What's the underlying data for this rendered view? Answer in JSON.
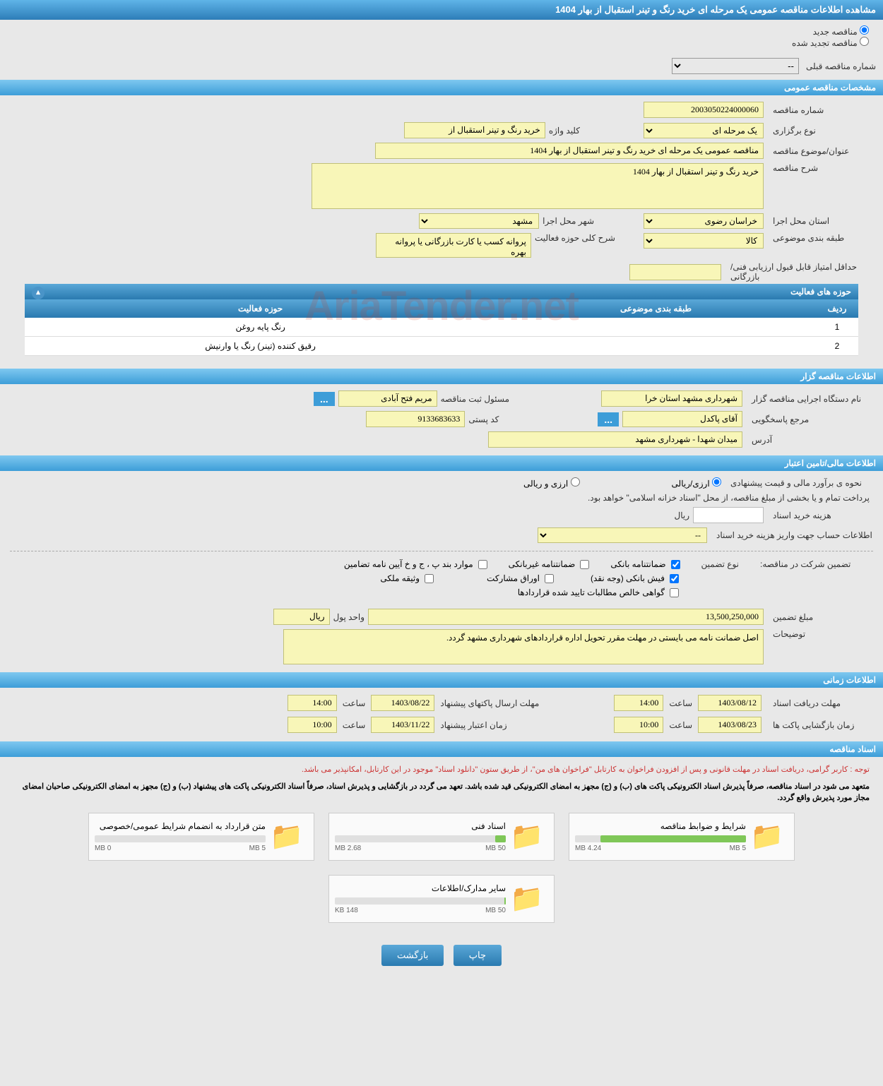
{
  "header": {
    "title": "مشاهده اطلاعات مناقصه عمومی یک مرحله ای خرید رنگ و تینر استقبال از بهار 1404"
  },
  "tender_type": {
    "new_tender": "مناقصه جدید",
    "renewed_tender": "مناقصه تجدید شده",
    "prev_label": "شماره مناقصه قبلی",
    "prev_value": "--"
  },
  "sections": {
    "general": "مشخصات مناقصه عمومی",
    "activity_areas": "حوزه های فعالیت",
    "organizer": "اطلاعات مناقصه گزار",
    "financial": "اطلاعات مالی/تامین اعتبار",
    "timing": "اطلاعات زمانی",
    "documents": "اسناد مناقصه"
  },
  "general": {
    "number_label": "شماره مناقصه",
    "number_value": "2003050224000060",
    "exec_type_label": "نوع برگزاری",
    "exec_type_value": "یک مرحله ای",
    "keyword_label": "کلید واژه",
    "keyword_value": "خرید رنگ و تینر استقبال از",
    "topic_label": "عنوان/موضوع مناقصه",
    "topic_value": "مناقصه عمومی یک مرحله ای خرید رنگ و تینر استقبال از بهار 1404",
    "desc_label": "شرح مناقصه",
    "desc_value": "خرید رنگ و تینر استقبال از بهار 1404",
    "province_label": "استان محل اجرا",
    "province_value": "خراسان رضوی",
    "city_label": "شهر محل اجرا",
    "city_value": "مشهد",
    "category_label": "طبقه بندی موضوعی",
    "category_value": "کالا",
    "scope_label": "شرح کلی حوزه فعالیت",
    "scope_value": "پروانه کسب یا کارت بازرگانی یا پروانه بهره",
    "min_score_label": "حداقل امتیاز قابل قبول ارزیابی فنی/بازرگانی"
  },
  "activity_table": {
    "col_row": "ردیف",
    "col_category": "طبقه بندی موضوعی",
    "col_area": "حوزه فعالیت",
    "rows": [
      {
        "idx": "1",
        "cat": "",
        "area": "رنگ پایه روغن"
      },
      {
        "idx": "2",
        "cat": "",
        "area": "رقیق کننده (تینر) رنگ یا وارنیش"
      }
    ]
  },
  "organizer": {
    "exec_dev_label": "نام دستگاه اجرایی مناقصه گزار",
    "exec_dev_value": "شهرداری مشهد استان خرا",
    "reg_officer_label": "مسئول ثبت مناقصه",
    "reg_officer_value": "مریم فتح آبادی",
    "contact_label": "مرجع پاسخگویی",
    "contact_value": "آقای پاکدل",
    "postal_label": "کد پستی",
    "postal_value": "9133683633",
    "address_label": "آدرس",
    "address_value": "میدان شهدا - شهرداری مشهد"
  },
  "financial": {
    "estimate_label": "نحوه ی برآورد مالی و قیمت پیشنهادی",
    "rial_only": "ارزی/ریالی",
    "currency_rial": "ارزی و ریالی",
    "payment_note": "پرداخت تمام و یا بخشی از مبلغ مناقصه، از محل \"اسناد خزانه اسلامی\" خواهد بود.",
    "doc_cost_label": "هزینه خرید اسناد",
    "rial_unit": "ریال",
    "deposit_account_label": "اطلاعات حساب جهت واریز هزینه خرید اسناد",
    "deposit_account_value": "--",
    "guarantee_label": "تضمین شرکت در مناقصه:",
    "guarantee_type": "نوع تضمین",
    "bank_guarantee": "ضمانتنامه بانکی",
    "nonbank_guarantee": "ضمانتنامه غیربانکی",
    "regulation_items": "موارد بند پ ، ج و خ آیین نامه تضامین",
    "bank_receipt": "فیش بانکی (وجه نقد)",
    "partnership_bonds": "اوراق مشارکت",
    "property_deposit": "وثیقه ملکی",
    "approved_receivables": "گواهی خالص مطالبات تایید شده قراردادها",
    "amount_label": "مبلغ تضمین",
    "amount_value": "13,500,250,000",
    "unit_label": "واحد پول",
    "unit_value": "ریال",
    "notes_label": "توضیحات",
    "notes_value": "اصل ضمانت نامه می بایستی در مهلت مقرر تحویل اداره قراردادهای شهرداری مشهد گردد."
  },
  "timing": {
    "receive_deadline_label": "مهلت دریافت اسناد",
    "receive_deadline_date": "1403/08/12",
    "receive_deadline_time": "14:00",
    "send_deadline_label": "مهلت ارسال پاکتهای پیشنهاد",
    "send_deadline_date": "1403/08/22",
    "send_deadline_time": "14:00",
    "opening_label": "زمان بازگشایی پاکت ها",
    "opening_date": "1403/08/23",
    "opening_time": "10:00",
    "validity_label": "زمان اعتبار پیشنهاد",
    "validity_date": "1403/11/22",
    "validity_time": "10:00",
    "time_label": "ساعت"
  },
  "documents": {
    "red_note": "توجه : کاربر گرامی، دریافت اسناد در مهلت قانونی و پس از افزودن فراخوان به کارتابل \"فراخوان های من\"، از طریق ستون \"دانلود اسناد\" موجود در این کارتابل، امکانپذیر می باشد.",
    "bold_note": "متعهد می شود در اسناد مناقصه، صرفاً پذیرش اسناد الکترونیکی پاکت های (ب) و (ج) مجهز به امضای الکترونیکی قید شده باشد. تعهد می گردد در بازگشایی و پذیرش اسناد، صرفاً اسناد الکترونیکی پاکت های پیشنهاد (ب) و (ج) مجهز به امضای الکترونیکی صاحبان امضای مجاز مورد پذیرش واقع گردد.",
    "files": [
      {
        "title": "شرایط و ضوابط مناقصه",
        "max": "5 MB",
        "current": "4.24 MB",
        "pct": 85
      },
      {
        "title": "اسناد فنی",
        "max": "50 MB",
        "current": "2.68 MB",
        "pct": 6
      },
      {
        "title": "متن قرارداد به انضمام شرایط عمومی/خصوصی",
        "max": "5 MB",
        "current": "0 MB",
        "pct": 0
      },
      {
        "title": "سایر مدارک/اطلاعات",
        "max": "50 MB",
        "current": "148 KB",
        "pct": 1
      }
    ]
  },
  "buttons": {
    "print": "چاپ",
    "back": "بازگشت"
  },
  "watermark": "AriaTender.net"
}
